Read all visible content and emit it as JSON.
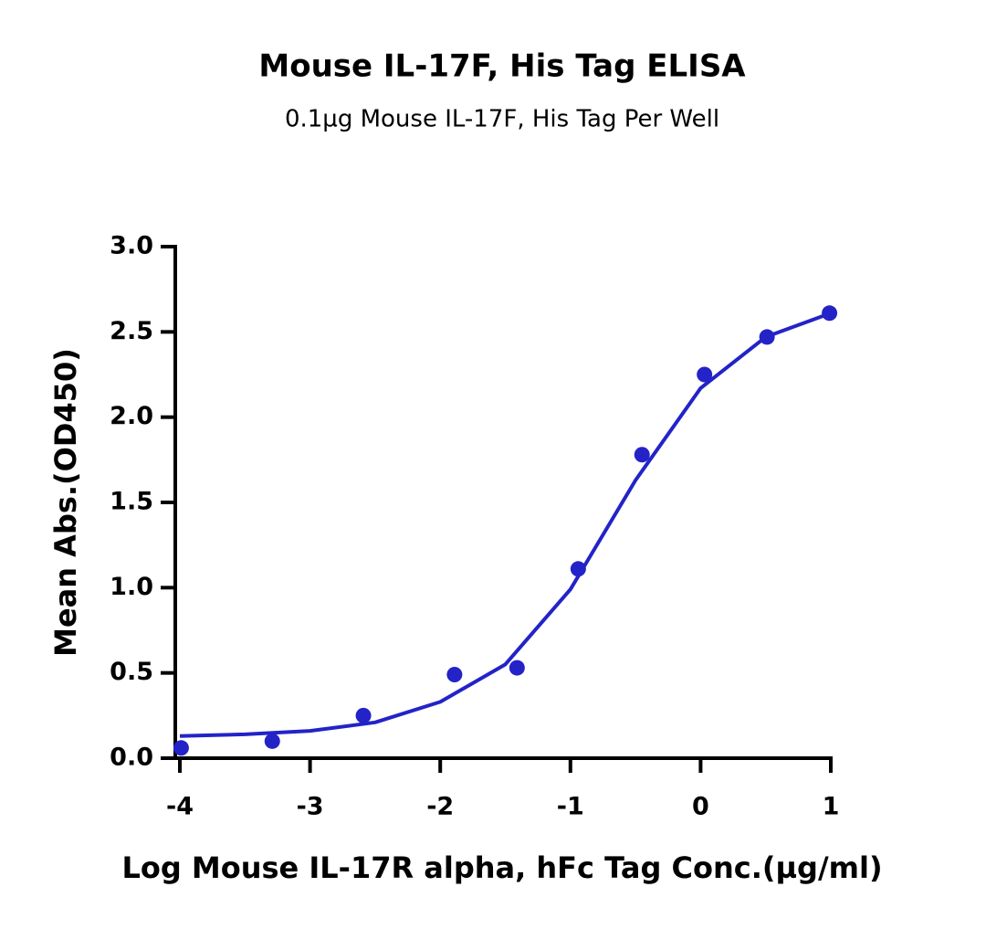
{
  "chart_data": {
    "type": "scatter",
    "title": "Mouse IL-17F, His Tag ELISA",
    "subtitle": "0.1µg Mouse IL-17F, His Tag Per Well",
    "x_label": "Log Mouse IL-17R alpha, hFc Tag Conc.(µg/ml)",
    "y_label": "Mean Abs.(OD450)",
    "xlim": [
      -4,
      1
    ],
    "xticks": [
      -4,
      -3,
      -2,
      -1,
      0,
      1
    ],
    "ylim": [
      0,
      3
    ],
    "yticks": [
      {
        "value": 0,
        "label": "0.0"
      },
      0.5,
      {
        "value": 1,
        "label": "1.0"
      },
      1.5,
      {
        "value": 2,
        "label": "2.0"
      },
      2.5,
      {
        "value": 3,
        "label": "3.0"
      }
    ],
    "series": [
      {
        "color": "#2323c8",
        "line": false,
        "x": [
          -3.99,
          -3.29,
          -2.59,
          -1.89,
          -1.41,
          -0.94,
          -0.45,
          0.03,
          0.51,
          0.99
        ],
        "values": [
          0.06,
          0.1,
          0.25,
          0.49,
          0.53,
          1.11,
          1.78,
          2.25,
          2.47,
          2.61
        ]
      },
      {
        "color": "#2323c8",
        "line": true,
        "x": [
          -4,
          -3.5,
          -3,
          -2.5,
          -2,
          -1.5,
          -1,
          -0.5,
          0,
          0.5,
          1
        ],
        "values": [
          0.13,
          0.14,
          0.16,
          0.21,
          0.33,
          0.55,
          0.99,
          1.63,
          2.17,
          2.47,
          2.61
        ]
      }
    ]
  }
}
